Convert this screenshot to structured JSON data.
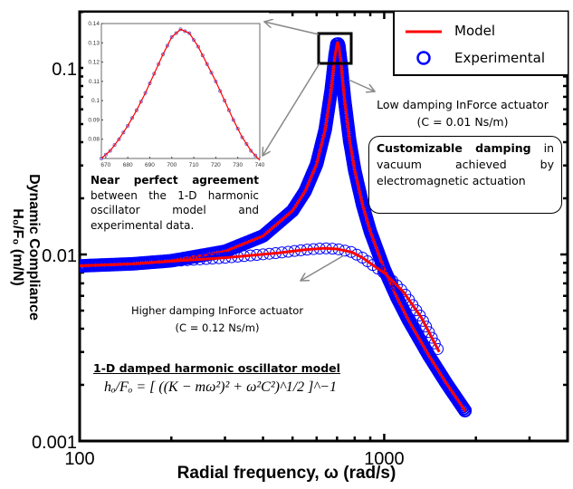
{
  "chart_data": {
    "type": "line",
    "xscale": "log",
    "yscale": "log",
    "xlim": [
      100,
      4000
    ],
    "ylim": [
      0.001,
      0.2
    ],
    "xlabel": "Radial frequency, ω (rad/s)",
    "ylabel_line1": "Dynamic Compliance",
    "ylabel_line2": "H₀/F₀ (m/N)",
    "xticks": [
      {
        "v": 100,
        "label": "100"
      },
      {
        "v": 1000,
        "label": "1000"
      }
    ],
    "yticks": [
      {
        "v": 0.001,
        "label": "0.001"
      },
      {
        "v": 0.01,
        "label": "0.01"
      },
      {
        "v": 0.1,
        "label": "0.1"
      }
    ],
    "legend": {
      "position": "top-right",
      "model": "Model",
      "experimental": "Experimental"
    },
    "colors": {
      "model": "#ff0000",
      "experimental": "#0000ff",
      "arrow": "#888888"
    },
    "series": [
      {
        "damping": "low",
        "x": [
          100,
          150,
          200,
          300,
          400,
          500,
          550,
          600,
          640,
          670,
          690,
          700,
          704,
          710,
          720,
          740,
          770,
          800,
          850,
          900,
          1000,
          1100,
          1200,
          1400,
          1600,
          1850
        ],
        "y": [
          0.00868,
          0.00891,
          0.00925,
          0.01039,
          0.01256,
          0.01716,
          0.02182,
          0.0305,
          0.0466,
          0.0763,
          0.1173,
          0.1353,
          0.1366,
          0.1308,
          0.1083,
          0.0689,
          0.0409,
          0.0283,
          0.01835,
          0.0133,
          0.00834,
          0.0059,
          0.00446,
          0.00288,
          0.00204,
          0.00144
        ]
      },
      {
        "damping": "high",
        "x": [
          100,
          150,
          200,
          300,
          370,
          450,
          550,
          637,
          700,
          782,
          850,
          915,
          1007,
          1156,
          1323,
          1516
        ],
        "y": [
          0.0087,
          0.0089,
          0.0092,
          0.0096,
          0.0099,
          0.0102,
          0.0106,
          0.0108,
          0.0107,
          0.0103,
          0.0096,
          0.0088,
          0.0079,
          0.0063,
          0.0046,
          0.003
        ]
      }
    ],
    "inset": {
      "xlim": [
        668,
        740
      ],
      "ylim": [
        0.07,
        0.14
      ],
      "xticks": [
        "670",
        "680",
        "690",
        "700",
        "710",
        "720",
        "730",
        "740"
      ],
      "yticks": [
        "0.08",
        "0.09",
        "0.1",
        "0.11",
        "0.12",
        "0.13",
        "0.14"
      ],
      "x": [
        668,
        672,
        676,
        680,
        684,
        688,
        692,
        696,
        700,
        704,
        708,
        712,
        716,
        720,
        724,
        728,
        732,
        736,
        740
      ],
      "y": [
        0.07,
        0.074,
        0.08,
        0.087,
        0.095,
        0.104,
        0.114,
        0.124,
        0.133,
        0.137,
        0.135,
        0.128,
        0.119,
        0.11,
        0.1,
        0.09,
        0.081,
        0.074,
        0.069
      ]
    }
  },
  "annotations": {
    "near_bold": "Near perfect agreement",
    "near_rest": " between the 1-D harmonic oscillator model and experimental data.",
    "low_line1": "Low damping InForce actuator",
    "low_line2": "(C = 0.01 Ns/m)",
    "high_line1": "Higher damping InForce actuator",
    "high_line2": "(C = 0.12 Ns/m)",
    "custom_bold": "Customizable damping",
    "custom_rest": " in vacuum achieved by electromagnetic actuation",
    "formula_title": "1-D damped harmonic oscillator model",
    "formula": "hₒ/Fₒ = [ ((K − mω²)² + ω²C²)^1/2 ]^−1"
  }
}
